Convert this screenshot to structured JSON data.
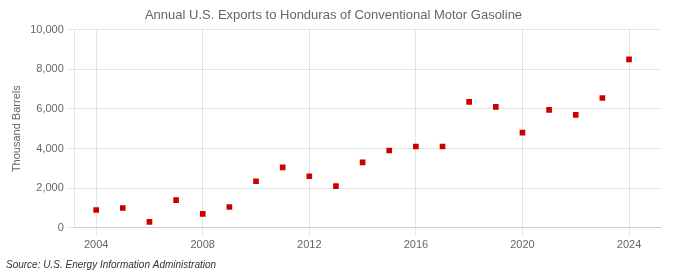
{
  "chart_data": {
    "type": "scatter",
    "title": "Annual U.S. Exports to Honduras of Conventional Motor Gasoline",
    "ylabel": "Thousand Barrels",
    "source": "Source: U.S. Energy Information Administration",
    "x": [
      2004,
      2005,
      2006,
      2007,
      2008,
      2009,
      2010,
      2011,
      2012,
      2013,
      2014,
      2015,
      2016,
      2017,
      2018,
      2019,
      2020,
      2021,
      2022,
      2023,
      2024
    ],
    "values": [
      900,
      1000,
      300,
      1400,
      700,
      1050,
      2350,
      3050,
      2600,
      2100,
      3300,
      3900,
      4100,
      4100,
      6350,
      6100,
      4800,
      5950,
      5700,
      6550,
      8500
    ],
    "color": "#cc0000",
    "marker": "square",
    "xlim": [
      2003.2,
      2025.2
    ],
    "xticks": [
      2004,
      2008,
      2012,
      2016,
      2020,
      2024
    ],
    "ylim": [
      0,
      10000
    ],
    "yticks": [
      0,
      {
        "value": 2000,
        "label": "2,000"
      },
      {
        "value": 4000,
        "label": "4,000"
      },
      {
        "value": 6000,
        "label": "6,000"
      },
      {
        "value": 8000,
        "label": "8,000"
      },
      {
        "value": 10000,
        "label": "10,000"
      }
    ],
    "grid": true
  }
}
